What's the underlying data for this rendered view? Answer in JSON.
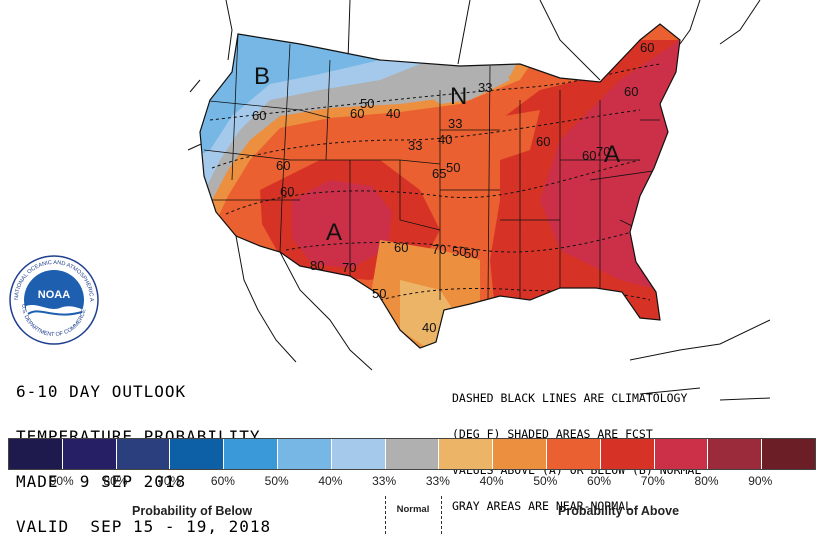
{
  "map": {
    "contour_labels": [
      "60",
      "60",
      "60",
      "60",
      "50",
      "40",
      "33",
      "50",
      "33",
      "40",
      "50",
      "60",
      "40",
      "70",
      "80",
      "70",
      "60",
      "60",
      "50",
      "70",
      "60",
      "33",
      "65",
      "50",
      "60"
    ],
    "region_markers": [
      "B",
      "N",
      "A",
      "A"
    ]
  },
  "title": {
    "line1": "6-10 DAY OUTLOOK",
    "line2": "TEMPERATURE PROBABILITY",
    "line3": "MADE  9 SEP 2018",
    "line4": "VALID  SEP 15 - 19, 2018"
  },
  "note": {
    "line1": "DASHED BLACK LINES ARE CLIMATOLOGY",
    "line2": "(DEG F) SHADED AREAS ARE FCST",
    "line3": "VALUES ABOVE (A) OR BELOW (B) NORMAL",
    "line4": "GRAY AREAS ARE NEAR-NORMAL"
  },
  "logo": {
    "name": "NOAA",
    "ring_text": "NATIONAL OCEANIC AND ATMOSPHERIC ADMINISTRATION",
    "ring_text_bottom": "U.S. DEPARTMENT OF COMMERCE"
  },
  "legend": {
    "colors": [
      "#1f1a4e",
      "#271f66",
      "#2b3f7e",
      "#0d5fa6",
      "#3a9ad9",
      "#76b7e6",
      "#a5c9ea",
      "#b0b0b0",
      "#ecb466",
      "#ec8f3f",
      "#ea6030",
      "#d63326",
      "#cc3048",
      "#9b2a3a",
      "#6b1e26"
    ],
    "labels": [
      "90%",
      "80%",
      "70%",
      "60%",
      "50%",
      "40%",
      "33%",
      "33%",
      "40%",
      "50%",
      "60%",
      "70%",
      "80%",
      "90%"
    ],
    "below_caption": "Probability of Below",
    "normal_caption": "Normal",
    "above_caption": "Probability of Above"
  }
}
